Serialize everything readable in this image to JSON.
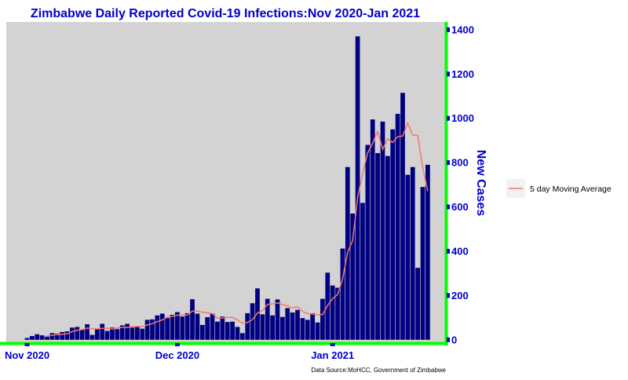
{
  "chart_data": {
    "type": "bar",
    "title": "Zimbabwe Daily Reported Covid-19 Infections:Nov 2020-Jan 2021",
    "xlabel": "",
    "ylabel": "New Cases",
    "ylim": [
      -15,
      1435
    ],
    "yticks": [
      0,
      200,
      400,
      600,
      800,
      1000,
      1200,
      1400
    ],
    "xticks": [
      {
        "day": 0,
        "label": "Nov 2020"
      },
      {
        "day": 30,
        "label": "Dec 2020"
      },
      {
        "day": 61,
        "label": "Jan 2021"
      }
    ],
    "grid": false,
    "legend": {
      "position": "right",
      "label": "5 day Moving Average"
    },
    "caption": "Data Source:MoHCC, Government of Zimbabwe",
    "start_date": "2020-10-31",
    "colors": {
      "bars": "#000080",
      "moving_average": "#f8766d",
      "panel": "#d3d3d3",
      "axis_lines": "#00ff00",
      "text": "#0000cd"
    },
    "series": [
      {
        "name": "Daily cases",
        "values": [
          8,
          17,
          25,
          20,
          14,
          30,
          28,
          35,
          38,
          55,
          58,
          45,
          70,
          22,
          50,
          72,
          40,
          55,
          48,
          65,
          72,
          55,
          58,
          50,
          90,
          92,
          110,
          118,
          98,
          113,
          125,
          105,
          120,
          183,
          118,
          67,
          102,
          118,
          82,
          105,
          80,
          82,
          58,
          30,
          120,
          165,
          232,
          115,
          185,
          110,
          182,
          103,
          143,
          123,
          135,
          98,
          90,
          120,
          78,
          185,
          303,
          245,
          235,
          412,
          780,
          570,
          1370,
          618,
          880,
          995,
          843,
          985,
          830,
          950,
          1020,
          1115,
          745,
          780,
          325,
          690,
          790
        ]
      },
      {
        "name": "5 day Moving Average",
        "values": [
          null,
          null,
          null,
          null,
          17,
          21,
          23,
          25,
          27,
          37,
          43,
          46,
          53,
          50,
          49,
          52,
          52,
          48,
          53,
          56,
          56,
          59,
          60,
          60,
          67,
          73,
          82,
          90,
          102,
          106,
          111,
          112,
          112,
          129,
          130,
          124,
          122,
          118,
          97,
          99,
          101,
          101,
          89,
          75,
          78,
          91,
          121,
          132,
          160,
          162,
          167,
          159,
          153,
          144,
          149,
          128,
          118,
          116,
          112,
          114,
          155,
          186,
          204,
          276,
          395,
          448,
          643,
          750,
          844,
          887,
          941,
          860,
          907,
          891,
          917,
          920,
          978,
          925,
          923,
          777,
          671
        ]
      }
    ]
  }
}
